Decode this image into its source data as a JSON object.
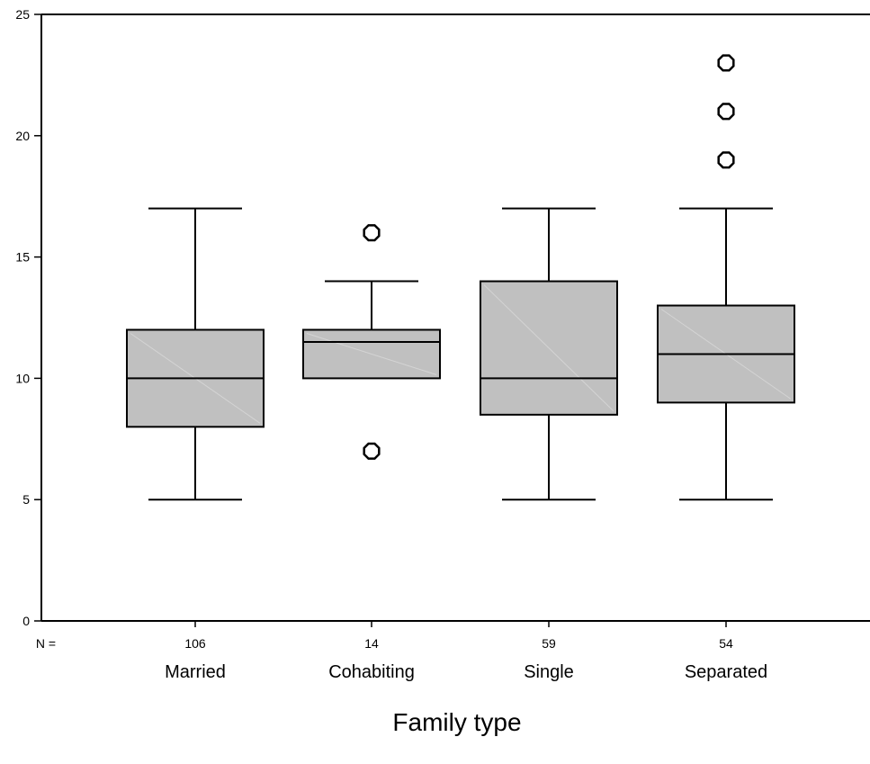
{
  "chart_data": {
    "type": "boxplot",
    "xlabel": "Family type",
    "ylabel": "",
    "ylim": [
      0,
      25
    ],
    "yticks": [
      0,
      5,
      10,
      15,
      20,
      25
    ],
    "n_prefix": "N =",
    "colors": {
      "box_fill": "#c0c0c0",
      "stroke": "#000000"
    },
    "categories": [
      "Married",
      "Cohabiting",
      "Single",
      "Separated"
    ],
    "n": [
      106,
      14,
      59,
      54
    ],
    "boxes": [
      {
        "category": "Married",
        "whisker_low": 5,
        "q1": 8,
        "median": 10,
        "q3": 12,
        "whisker_high": 17,
        "outliers": []
      },
      {
        "category": "Cohabiting",
        "whisker_low": 10,
        "q1": 10,
        "median": 11.5,
        "q3": 12,
        "whisker_high": 14,
        "outliers": [
          16,
          7
        ]
      },
      {
        "category": "Single",
        "whisker_low": 5,
        "q1": 8.5,
        "median": 10,
        "q3": 14,
        "whisker_high": 17,
        "outliers": []
      },
      {
        "category": "Separated",
        "whisker_low": 5,
        "q1": 9,
        "median": 11,
        "q3": 13,
        "whisker_high": 17,
        "outliers": [
          19,
          21,
          23
        ]
      }
    ]
  }
}
